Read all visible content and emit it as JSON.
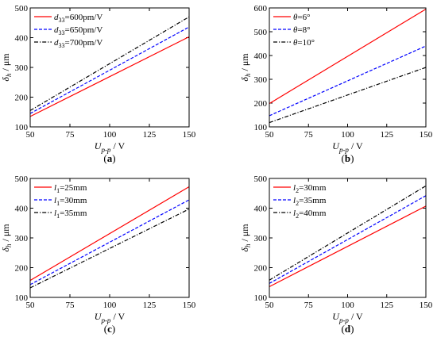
{
  "chart_data": [
    {
      "type": "line",
      "panel_label": "(a)",
      "xlabel_main": "U",
      "xlabel_sub": "p-p",
      "xlabel_unit": " / V",
      "ylabel_main": "δ",
      "ylabel_sub": "h",
      "ylabel_unit": " / μm",
      "xlim": [
        50,
        150
      ],
      "ylim": [
        100,
        500
      ],
      "xticks": [
        50,
        75,
        100,
        125,
        150
      ],
      "yticks": [
        100,
        200,
        300,
        400,
        500
      ],
      "x": [
        50,
        150
      ],
      "legend_position": "top-left",
      "series": [
        {
          "name_main": "d",
          "name_sub": "33",
          "name_rest": "=600pm/V",
          "color": "#ff0000",
          "dash": "solid",
          "values": [
            135,
            403
          ]
        },
        {
          "name_main": "d",
          "name_sub": "33",
          "name_rest": "=650pm/V",
          "color": "#0000ff",
          "dash": "dashed",
          "values": [
            145,
            436
          ]
        },
        {
          "name_main": "d",
          "name_sub": "33",
          "name_rest": "=700pm/V",
          "color": "#000000",
          "dash": "dashdot",
          "values": [
            155,
            470
          ]
        }
      ]
    },
    {
      "type": "line",
      "panel_label": "(b)",
      "xlabel_main": "U",
      "xlabel_sub": "p-p",
      "xlabel_unit": " / V",
      "ylabel_main": "δ",
      "ylabel_sub": "h",
      "ylabel_unit": " / μm",
      "xlim": [
        50,
        150
      ],
      "ylim": [
        100,
        600
      ],
      "xticks": [
        50,
        75,
        100,
        125,
        150
      ],
      "yticks": [
        100,
        200,
        300,
        400,
        500,
        600
      ],
      "x": [
        50,
        150
      ],
      "legend_position": "top-left",
      "series": [
        {
          "name_main": "θ",
          "name_sub": "",
          "name_rest": "=6°",
          "color": "#ff0000",
          "dash": "solid",
          "values": [
            198,
            595
          ]
        },
        {
          "name_main": "θ",
          "name_sub": "",
          "name_rest": "=8°",
          "color": "#0000ff",
          "dash": "dashed",
          "values": [
            147,
            440
          ]
        },
        {
          "name_main": "θ",
          "name_sub": "",
          "name_rest": "=10°",
          "color": "#000000",
          "dash": "dashdot",
          "values": [
            118,
            350
          ]
        }
      ]
    },
    {
      "type": "line",
      "panel_label": "(c)",
      "xlabel_main": "U",
      "xlabel_sub": "p-p",
      "xlabel_unit": " / V",
      "ylabel_main": "δ",
      "ylabel_sub": "h",
      "ylabel_unit": " / μm",
      "xlim": [
        50,
        150
      ],
      "ylim": [
        100,
        500
      ],
      "xticks": [
        50,
        75,
        100,
        125,
        150
      ],
      "yticks": [
        100,
        200,
        300,
        400,
        500
      ],
      "x": [
        50,
        150
      ],
      "legend_position": "top-left",
      "series": [
        {
          "name_main": "l",
          "name_sub": "1",
          "name_rest": "=25mm",
          "color": "#ff0000",
          "dash": "solid",
          "values": [
            157,
            472
          ]
        },
        {
          "name_main": "l",
          "name_sub": "1",
          "name_rest": "=30mm",
          "color": "#0000ff",
          "dash": "dashed",
          "values": [
            143,
            428
          ]
        },
        {
          "name_main": "l",
          "name_sub": "1",
          "name_rest": "=35mm",
          "color": "#000000",
          "dash": "dashdot",
          "values": [
            132,
            397
          ]
        }
      ]
    },
    {
      "type": "line",
      "panel_label": "(d)",
      "xlabel_main": "U",
      "xlabel_sub": "p-p",
      "xlabel_unit": " / V",
      "ylabel_main": "δ",
      "ylabel_sub": "h",
      "ylabel_unit": " / μm",
      "xlim": [
        50,
        150
      ],
      "ylim": [
        100,
        500
      ],
      "xticks": [
        50,
        75,
        100,
        125,
        150
      ],
      "yticks": [
        100,
        200,
        300,
        400,
        500
      ],
      "x": [
        50,
        150
      ],
      "legend_position": "top-left",
      "series": [
        {
          "name_main": "l",
          "name_sub": "2",
          "name_rest": "=30mm",
          "color": "#ff0000",
          "dash": "solid",
          "values": [
            136,
            407
          ]
        },
        {
          "name_main": "l",
          "name_sub": "2",
          "name_rest": "=35mm",
          "color": "#0000ff",
          "dash": "dashed",
          "values": [
            147,
            442
          ]
        },
        {
          "name_main": "l",
          "name_sub": "2",
          "name_rest": "=40mm",
          "color": "#000000",
          "dash": "dashdot",
          "values": [
            158,
            475
          ]
        }
      ]
    }
  ]
}
